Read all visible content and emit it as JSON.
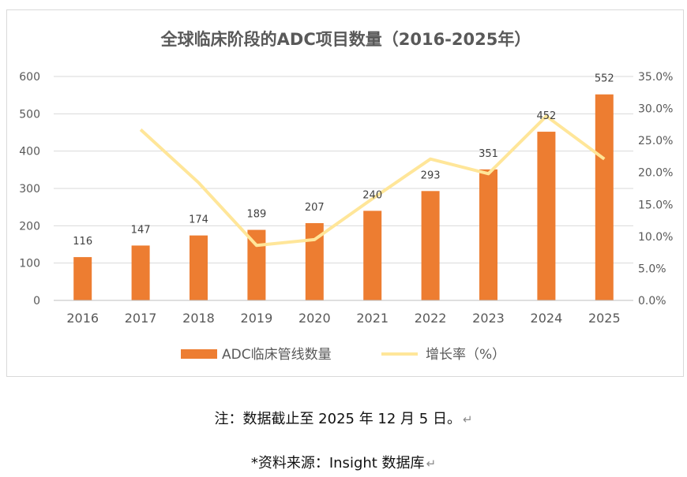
{
  "chart_data": {
    "type": "bar+line",
    "title": "全球临床阶段的ADC项目数量（2016-2025年）",
    "categories": [
      "2016",
      "2017",
      "2018",
      "2019",
      "2020",
      "2021",
      "2022",
      "2023",
      "2024",
      "2025"
    ],
    "series": [
      {
        "name": "ADC临床管线数量",
        "kind": "bar",
        "axis": "left",
        "color": "#ED7D31",
        "values": [
          116,
          147,
          174,
          189,
          207,
          240,
          293,
          351,
          452,
          552
        ]
      },
      {
        "name": "增长率（%）",
        "kind": "line",
        "axis": "right",
        "color": "#FFE699",
        "values": [
          null,
          26.7,
          18.4,
          8.6,
          9.5,
          15.9,
          22.1,
          19.8,
          28.8,
          22.1
        ]
      }
    ],
    "y_left": {
      "min": 0,
      "max": 600,
      "step": 100,
      "ticks": [
        "0",
        "100",
        "200",
        "300",
        "400",
        "500",
        "600"
      ]
    },
    "y_right": {
      "min": 0,
      "max": 35,
      "step": 5,
      "ticks": [
        "0.0%",
        "5.0%",
        "10.0%",
        "15.0%",
        "20.0%",
        "25.0%",
        "30.0%",
        "35.0%"
      ]
    },
    "data_labels": [
      "116",
      "147",
      "174",
      "189",
      "207",
      "240",
      "293",
      "351",
      "452",
      "552"
    ],
    "legend": {
      "position": "bottom",
      "bar_label": "ADC临床管线数量",
      "line_label": "增长率（%）"
    },
    "grid": true
  },
  "footer": {
    "note": "注：数据截止至 2025 年 12 月 5 日。",
    "source": "*资料来源：Insight  数据库",
    "return_mark": "↵"
  }
}
